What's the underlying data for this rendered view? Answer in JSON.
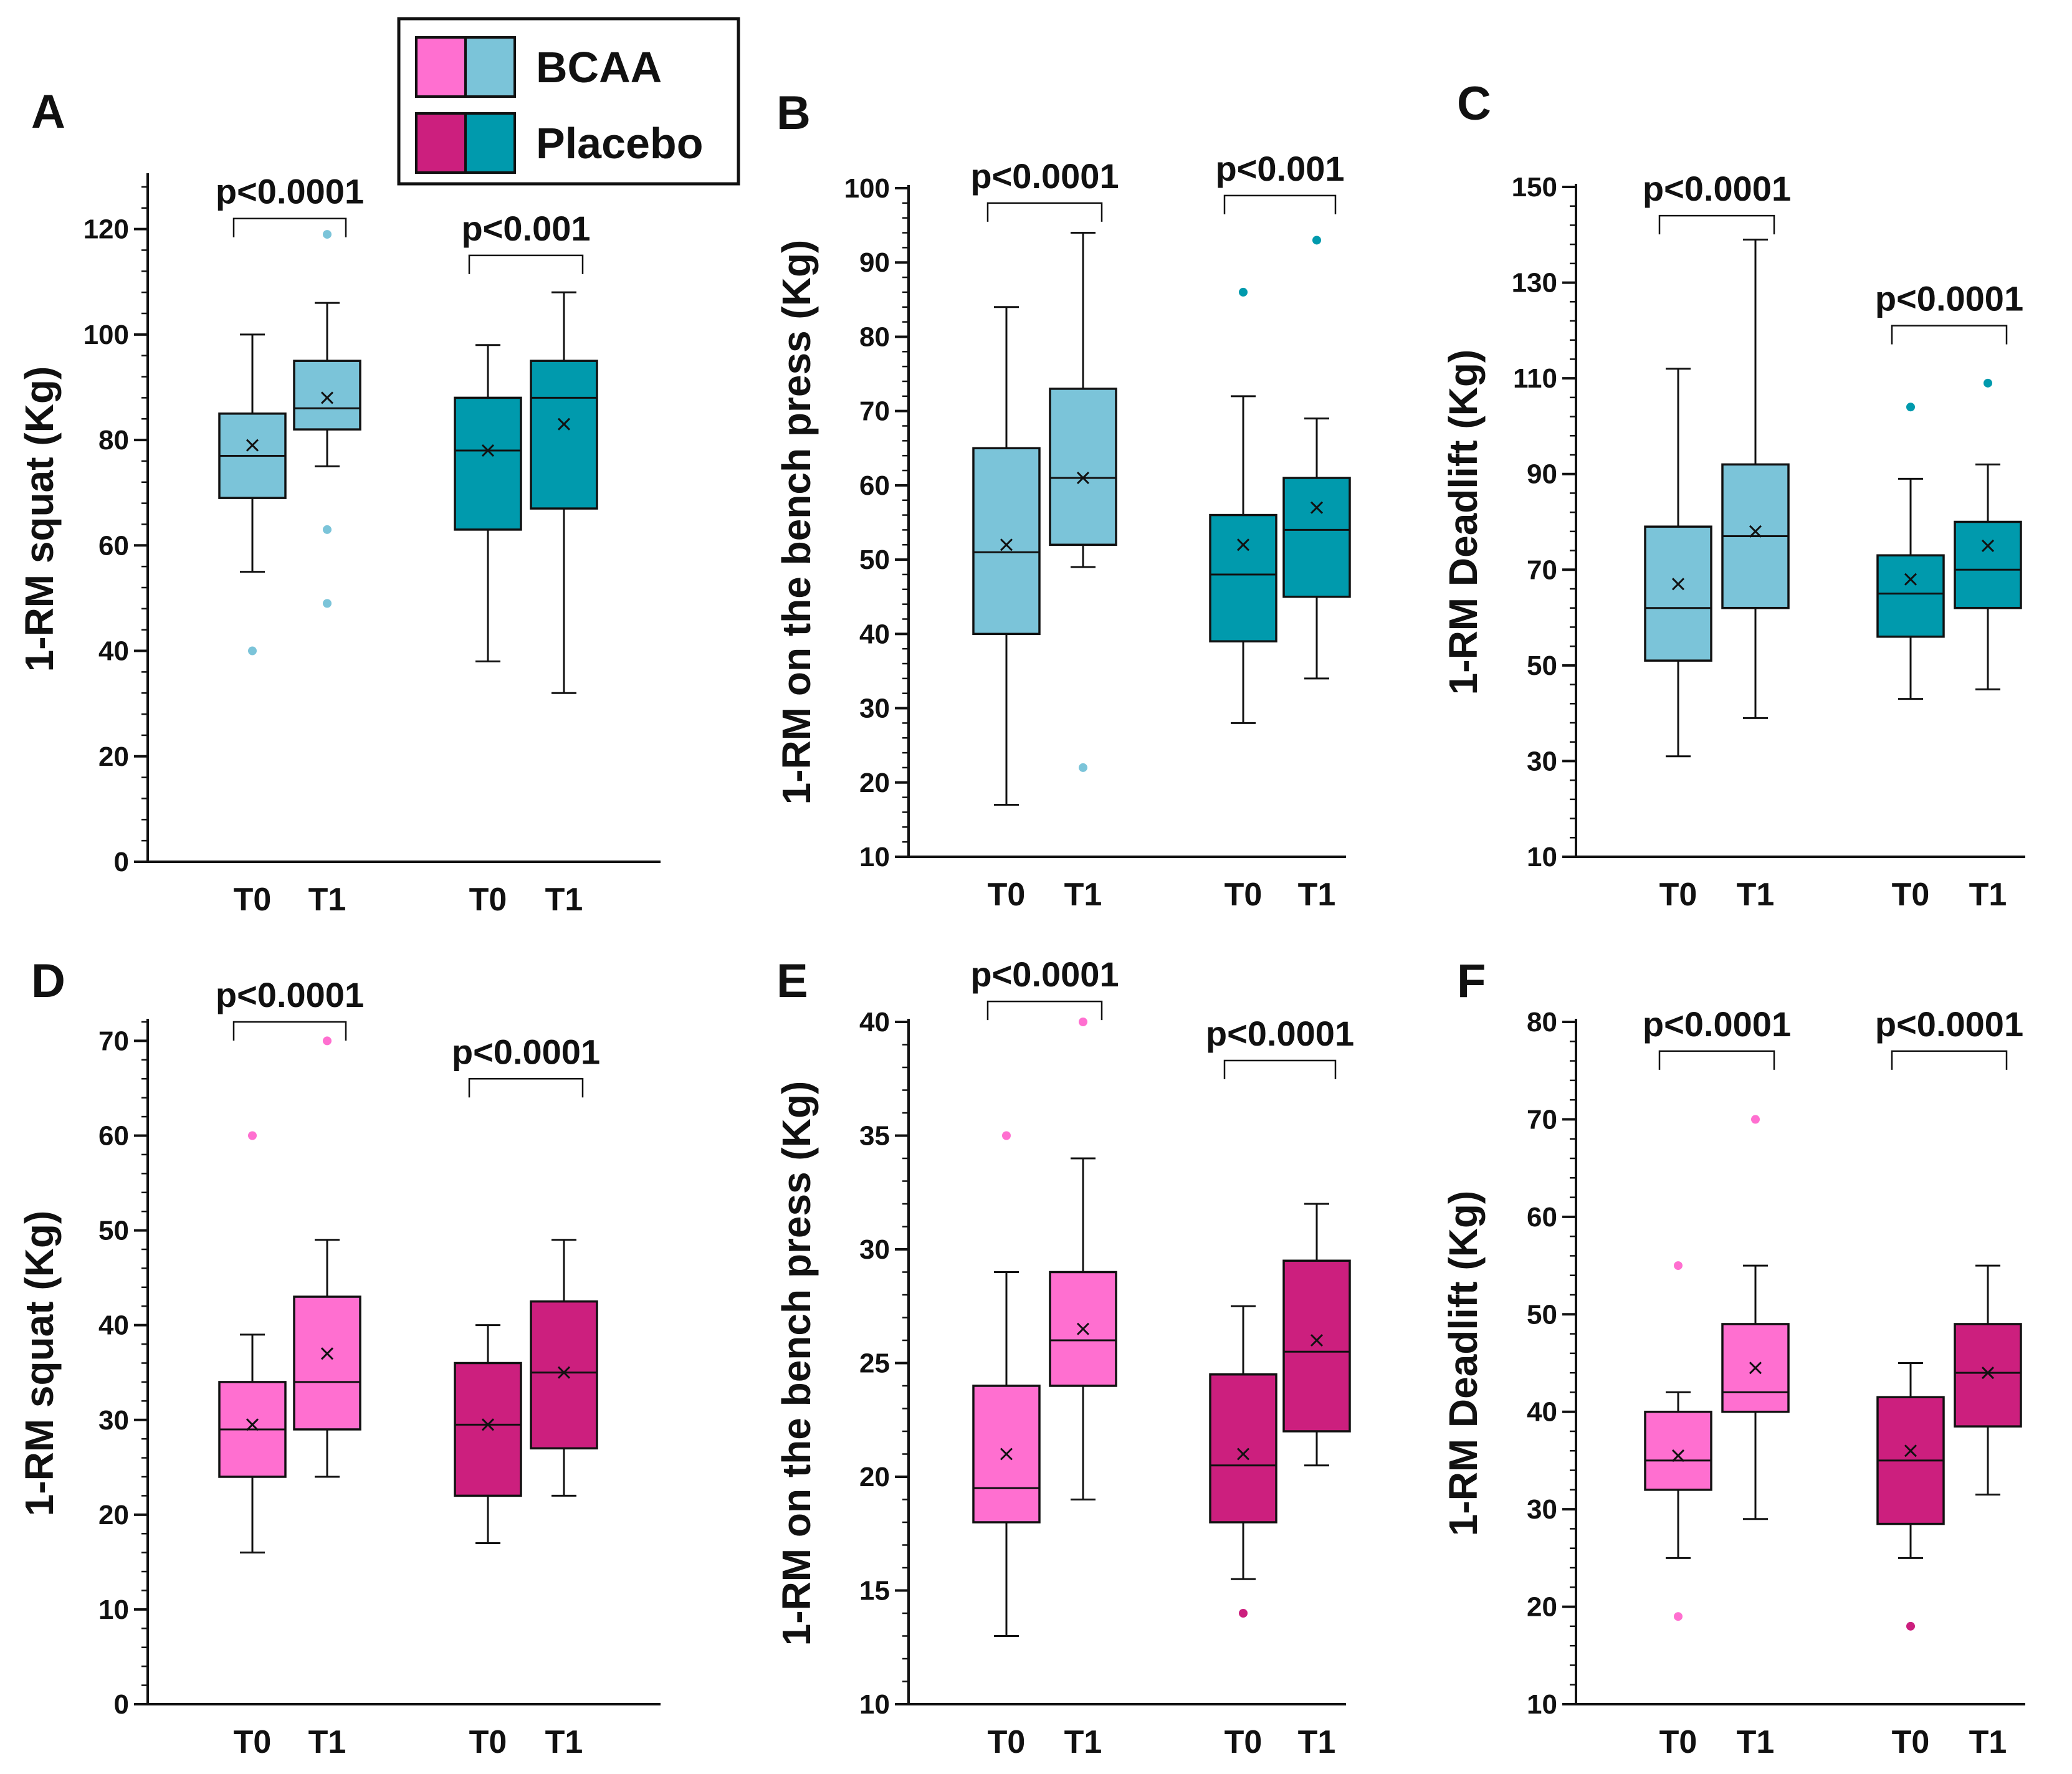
{
  "legend": {
    "entries": [
      {
        "label": "BCAA",
        "colors": [
          "#ff6fd0",
          "#7bc4d9"
        ]
      },
      {
        "label": "Placebo",
        "colors": [
          "#cc1f7e",
          "#009aad"
        ]
      }
    ]
  },
  "colors": {
    "bcaa_male": "#7bc4d9",
    "placebo_male": "#009aad",
    "bcaa_female": "#ff6fd0",
    "placebo_female": "#cc1f7e",
    "outline": "#111111"
  },
  "chart_data": [
    {
      "panel": "A",
      "type": "box",
      "ylabel": "1-RM squat (Kg)",
      "ylim": [
        0,
        130
      ],
      "yticks": [
        0,
        20,
        40,
        60,
        80,
        100,
        120
      ],
      "minor_ticks": true,
      "categories": [
        "T0",
        "T1",
        "T0",
        "T1"
      ],
      "groups": [
        "BCAA",
        "BCAA",
        "Placebo",
        "Placebo"
      ],
      "fill": [
        "bcaa_male",
        "bcaa_male",
        "placebo_male",
        "placebo_male"
      ],
      "boxes": [
        {
          "min": 55,
          "q1": 69,
          "median": 77,
          "q3": 85,
          "max": 100,
          "mean": 79,
          "outliers": [
            40
          ]
        },
        {
          "min": 75,
          "q1": 82,
          "median": 86,
          "q3": 95,
          "max": 106,
          "mean": 88,
          "outliers": [
            119,
            63,
            49
          ]
        },
        {
          "min": 38,
          "q1": 63,
          "median": 78,
          "q3": 88,
          "max": 98,
          "mean": 78,
          "outliers": []
        },
        {
          "min": 32,
          "q1": 67,
          "median": 88,
          "q3": 95,
          "max": 108,
          "mean": 83,
          "outliers": []
        }
      ],
      "comparisons": [
        {
          "pair": [
            0,
            1
          ],
          "label": "p<0.0001",
          "level": 122
        },
        {
          "pair": [
            2,
            3
          ],
          "label": "p<0.001",
          "level": 115
        }
      ]
    },
    {
      "panel": "B",
      "type": "box",
      "ylabel": "1-RM on the bench press (Kg)",
      "ylim": [
        10,
        100
      ],
      "yticks": [
        10,
        20,
        30,
        40,
        50,
        60,
        70,
        80,
        90,
        100
      ],
      "minor_ticks": true,
      "categories": [
        "T0",
        "T1",
        "T0",
        "T1"
      ],
      "groups": [
        "BCAA",
        "BCAA",
        "Placebo",
        "Placebo"
      ],
      "fill": [
        "bcaa_male",
        "bcaa_male",
        "placebo_male",
        "placebo_male"
      ],
      "boxes": [
        {
          "min": 17,
          "q1": 40,
          "median": 51,
          "q3": 65,
          "max": 84,
          "mean": 52,
          "outliers": []
        },
        {
          "min": 49,
          "q1": 52,
          "median": 61,
          "q3": 73,
          "max": 94,
          "mean": 61,
          "outliers": [
            22
          ]
        },
        {
          "min": 28,
          "q1": 39,
          "median": 48,
          "q3": 56,
          "max": 72,
          "mean": 52,
          "outliers": [
            86
          ]
        },
        {
          "min": 34,
          "q1": 45,
          "median": 54,
          "q3": 61,
          "max": 69,
          "mean": 57,
          "outliers": [
            93
          ]
        }
      ],
      "comparisons": [
        {
          "pair": [
            0,
            1
          ],
          "label": "p<0.0001",
          "level": 98
        },
        {
          "pair": [
            2,
            3
          ],
          "label": "p<0.001",
          "level": 99
        }
      ]
    },
    {
      "panel": "C",
      "type": "box",
      "ylabel": "1-RM Deadlift (Kg)",
      "ylim": [
        10,
        150
      ],
      "yticks": [
        10,
        30,
        50,
        70,
        90,
        110,
        130,
        150
      ],
      "minor_ticks": true,
      "categories": [
        "T0",
        "T1",
        "T0",
        "T1"
      ],
      "groups": [
        "BCAA",
        "BCAA",
        "Placebo",
        "Placebo"
      ],
      "fill": [
        "bcaa_male",
        "bcaa_male",
        "placebo_male",
        "placebo_male"
      ],
      "boxes": [
        {
          "min": 31,
          "q1": 51,
          "median": 62,
          "q3": 79,
          "max": 112,
          "mean": 67,
          "outliers": []
        },
        {
          "min": 39,
          "q1": 62,
          "median": 77,
          "q3": 92,
          "max": 139,
          "mean": 78,
          "outliers": []
        },
        {
          "min": 43,
          "q1": 56,
          "median": 65,
          "q3": 73,
          "max": 89,
          "mean": 68,
          "outliers": [
            104
          ]
        },
        {
          "min": 45,
          "q1": 62,
          "median": 70,
          "q3": 80,
          "max": 92,
          "mean": 75,
          "outliers": [
            109
          ]
        }
      ],
      "comparisons": [
        {
          "pair": [
            0,
            1
          ],
          "label": "p<0.0001",
          "level": 144
        },
        {
          "pair": [
            2,
            3
          ],
          "label": "p<0.0001",
          "level": 121
        }
      ]
    },
    {
      "panel": "D",
      "type": "box",
      "ylabel": "1-RM squat (Kg)",
      "ylim": [
        0,
        72
      ],
      "yticks": [
        0,
        10,
        20,
        30,
        40,
        50,
        60,
        70
      ],
      "minor_ticks": true,
      "categories": [
        "T0",
        "T1",
        "T0",
        "T1"
      ],
      "groups": [
        "BCAA",
        "BCAA",
        "Placebo",
        "Placebo"
      ],
      "fill": [
        "bcaa_female",
        "bcaa_female",
        "placebo_female",
        "placebo_female"
      ],
      "boxes": [
        {
          "min": 16,
          "q1": 24,
          "median": 29,
          "q3": 34,
          "max": 39,
          "mean": 29.5,
          "outliers": [
            60
          ]
        },
        {
          "min": 24,
          "q1": 29,
          "median": 34,
          "q3": 43,
          "max": 49,
          "mean": 37,
          "outliers": [
            70
          ]
        },
        {
          "min": 17,
          "q1": 22,
          "median": 29.5,
          "q3": 36,
          "max": 40,
          "mean": 29.5,
          "outliers": []
        },
        {
          "min": 22,
          "q1": 27,
          "median": 35,
          "q3": 42.5,
          "max": 49,
          "mean": 35,
          "outliers": []
        }
      ],
      "comparisons": [
        {
          "pair": [
            0,
            1
          ],
          "label": "p<0.0001",
          "level": 72
        },
        {
          "pair": [
            2,
            3
          ],
          "label": "p<0.0001",
          "level": 66
        }
      ]
    },
    {
      "panel": "E",
      "type": "box",
      "ylabel": "1-RM on the bench press (Kg)",
      "ylim": [
        10,
        40
      ],
      "yticks": [
        10,
        15,
        20,
        25,
        30,
        35,
        40
      ],
      "minor_ticks": true,
      "categories": [
        "T0",
        "T1",
        "T0",
        "T1"
      ],
      "groups": [
        "BCAA",
        "BCAA",
        "Placebo",
        "Placebo"
      ],
      "fill": [
        "bcaa_female",
        "bcaa_female",
        "placebo_female",
        "placebo_female"
      ],
      "boxes": [
        {
          "min": 13,
          "q1": 18,
          "median": 19.5,
          "q3": 24,
          "max": 29,
          "mean": 21,
          "outliers": [
            35
          ]
        },
        {
          "min": 19,
          "q1": 24,
          "median": 26,
          "q3": 29,
          "max": 34,
          "mean": 26.5,
          "outliers": [
            40
          ]
        },
        {
          "min": 15.5,
          "q1": 18,
          "median": 20.5,
          "q3": 24.5,
          "max": 27.5,
          "mean": 21,
          "outliers": [
            14
          ]
        },
        {
          "min": 20.5,
          "q1": 22,
          "median": 25.5,
          "q3": 29.5,
          "max": 32,
          "mean": 26,
          "outliers": []
        }
      ],
      "comparisons": [
        {
          "pair": [
            0,
            1
          ],
          "label": "p<0.0001",
          "level": 40.9
        },
        {
          "pair": [
            2,
            3
          ],
          "label": "p<0.0001",
          "level": 38.3
        }
      ]
    },
    {
      "panel": "F",
      "type": "box",
      "ylabel": "1-RM Deadlift (Kg)",
      "ylim": [
        10,
        80
      ],
      "yticks": [
        10,
        20,
        30,
        40,
        50,
        60,
        70,
        80
      ],
      "minor_ticks": true,
      "categories": [
        "T0",
        "T1",
        "T0",
        "T1"
      ],
      "groups": [
        "BCAA",
        "BCAA",
        "Placebo",
        "Placebo"
      ],
      "fill": [
        "bcaa_female",
        "bcaa_female",
        "placebo_female",
        "placebo_female"
      ],
      "boxes": [
        {
          "min": 25,
          "q1": 32,
          "median": 35,
          "q3": 40,
          "max": 42,
          "mean": 35.5,
          "outliers": [
            55,
            19
          ]
        },
        {
          "min": 29,
          "q1": 40,
          "median": 42,
          "q3": 49,
          "max": 55,
          "mean": 44.5,
          "outliers": [
            70
          ]
        },
        {
          "min": 25,
          "q1": 28.5,
          "median": 35,
          "q3": 41.5,
          "max": 45,
          "mean": 36,
          "outliers": [
            18
          ]
        },
        {
          "min": 31.5,
          "q1": 38.5,
          "median": 44,
          "q3": 49,
          "max": 55,
          "mean": 44,
          "outliers": []
        }
      ],
      "comparisons": [
        {
          "pair": [
            0,
            1
          ],
          "label": "p<0.0001",
          "level": 77
        },
        {
          "pair": [
            2,
            3
          ],
          "label": "p<0.0001",
          "level": 77
        }
      ]
    }
  ]
}
